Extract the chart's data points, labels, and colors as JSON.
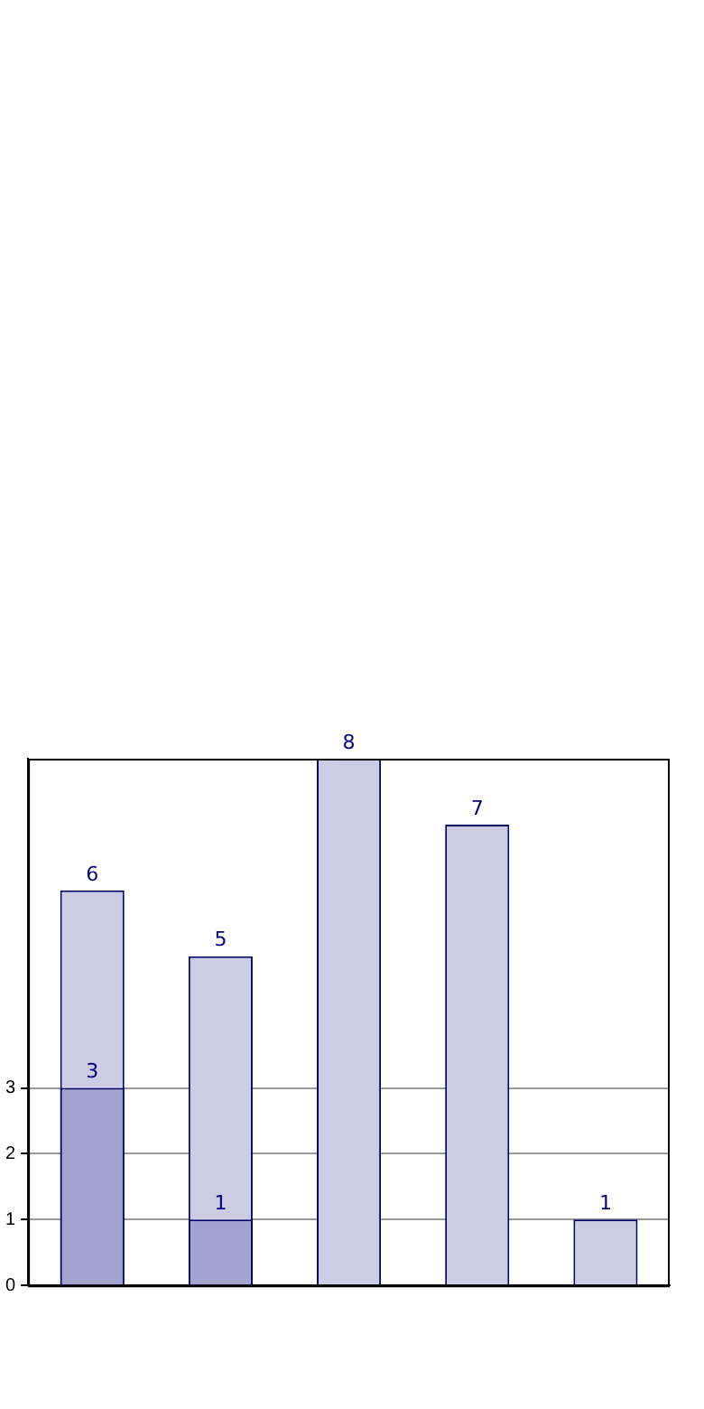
{
  "chart_data": {
    "type": "bar",
    "categories": [
      null,
      null,
      null,
      null,
      null
    ],
    "series": [
      {
        "color": "#ccccE5",
        "values": [
          6,
          5,
          8,
          7,
          1
        ]
      },
      {
        "color": "#a3a3d0",
        "values": [
          3,
          1,
          null,
          null,
          null
        ]
      }
    ],
    "ylim": [
      0,
      8
    ],
    "yticks": [
      0,
      1,
      2,
      3
    ],
    "grid": "y",
    "data_labels": true
  }
}
